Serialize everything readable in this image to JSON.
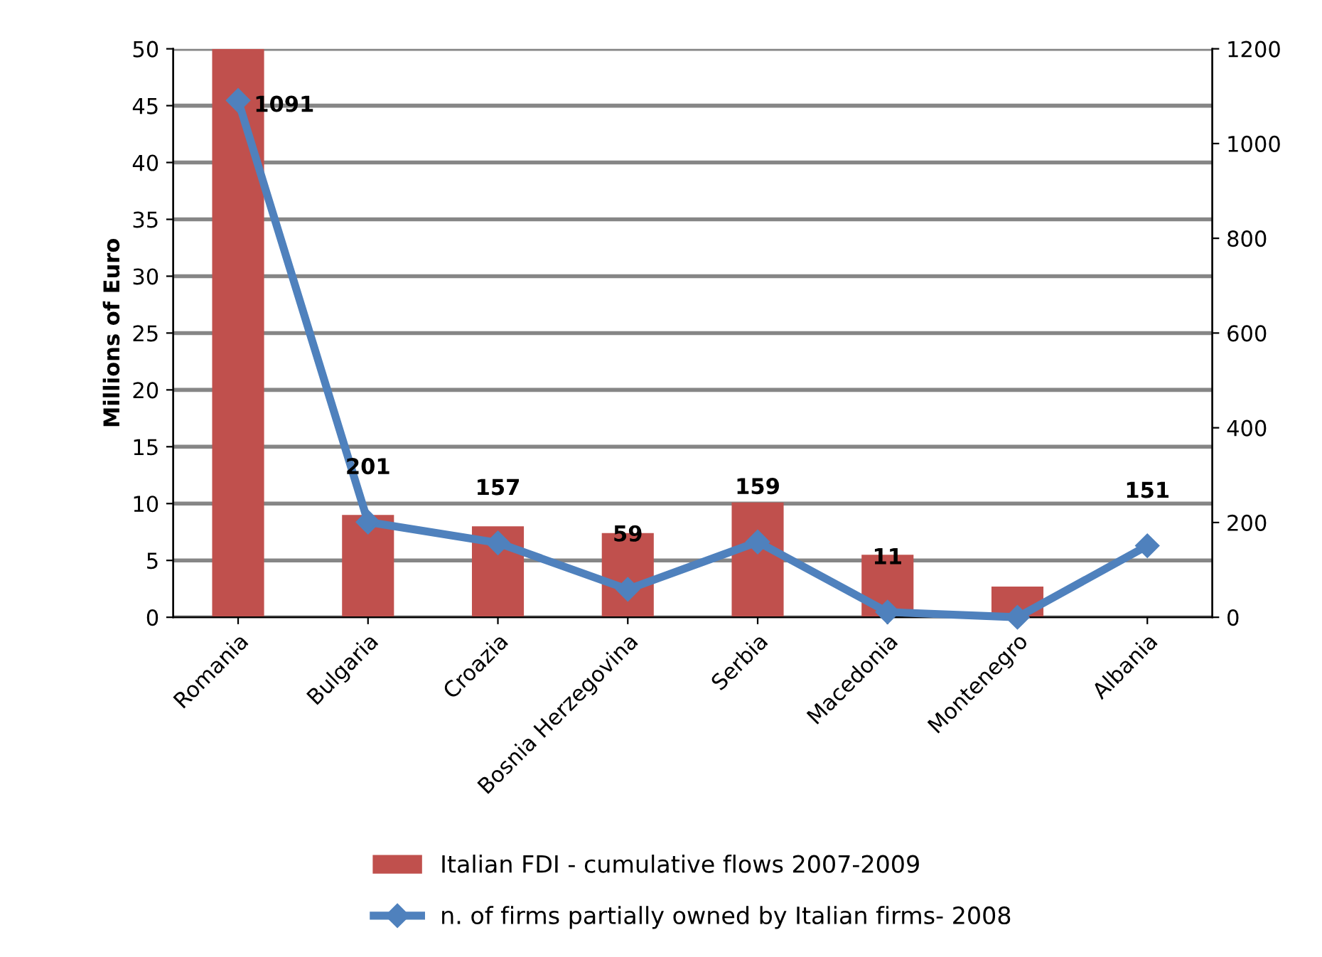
{
  "chart_data": {
    "type": "bar",
    "ylabel": "Millions of Euro",
    "categories": [
      "Romania",
      "Bulgaria",
      "Croazia",
      "Bosnia Herzegovina",
      "Serbia",
      "Macedonia",
      "Montenegro",
      "Albania"
    ],
    "series": [
      {
        "name": "Italian FDI - cumulative flows 2007-2009",
        "color": "#c0504d",
        "values": [
          50,
          9,
          8,
          7.4,
          10.1,
          5.5,
          2.7,
          null
        ]
      },
      {
        "name": "n. of firms partially owned by Italian firms- 2008",
        "type": "line",
        "axis": "y2",
        "color": "#4f81bd",
        "marker": "diamond",
        "values": [
          1091,
          201,
          157,
          59,
          159,
          11,
          0,
          151
        ],
        "value_labels": [
          "1091",
          "201",
          "157",
          "59",
          "159",
          "11",
          null,
          "151"
        ]
      }
    ],
    "ylim": [
      0,
      50
    ],
    "yticks": [
      0,
      5,
      10,
      15,
      20,
      25,
      30,
      35,
      40,
      45,
      50
    ],
    "y2lim": [
      0,
      1200
    ],
    "y2ticks": [
      0,
      200,
      400,
      600,
      800,
      1000,
      1200
    ],
    "grid": "y",
    "legend": "bottom"
  }
}
